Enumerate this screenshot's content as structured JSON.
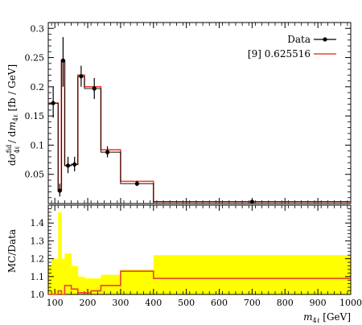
{
  "chart_data": {
    "type": "line",
    "x_range": [
      80,
      1000
    ],
    "main": {
      "ylabel": "dσ^fid_4ℓ / dm_4ℓ [fb / GeV]",
      "ylabel_parts": {
        "d1": "d",
        "sigma": "σ",
        "sup": "fid",
        "sub": "4ℓ",
        "slash": " / d",
        "m": "m",
        "sub2": "4ℓ",
        "unit": " [fb / GeV]"
      },
      "ylim": [
        0,
        0.31
      ],
      "yticks": [
        {
          "v": 0.05,
          "label": "0.05"
        },
        {
          "v": 0.1,
          "label": "0.1"
        },
        {
          "v": 0.15,
          "label": "0.15"
        },
        {
          "v": 0.2,
          "label": "0.2"
        },
        {
          "v": 0.25,
          "label": "0.25"
        },
        {
          "v": 0.3,
          "label": "0.3"
        }
      ],
      "bin_edges": [
        80,
        110,
        120,
        130,
        150,
        170,
        190,
        210,
        240,
        280,
        300,
        400,
        1000
      ],
      "data": {
        "name": "Data",
        "x": [
          95,
          115,
          125,
          140,
          160,
          180,
          220,
          260,
          350,
          700
        ],
        "y": [
          0.172,
          0.022,
          0.245,
          0.065,
          0.067,
          0.218,
          0.197,
          0.088,
          0.034,
          0.003
        ],
        "yerr_low": [
          0.025,
          0.01,
          0.045,
          0.013,
          0.012,
          0.018,
          0.018,
          0.009,
          0.004,
          0.001
        ],
        "yerr_high": [
          0.028,
          0.012,
          0.04,
          0.015,
          0.013,
          0.018,
          0.018,
          0.01,
          0.005,
          0.001
        ]
      },
      "mc": {
        "name": "[9] 0.625516",
        "color": "#e8442e",
        "bins": [
          {
            "lo": 80,
            "hi": 110,
            "v": 0.172
          },
          {
            "lo": 110,
            "hi": 120,
            "v": 0.022
          },
          {
            "lo": 120,
            "hi": 130,
            "v": 0.245
          },
          {
            "lo": 130,
            "hi": 150,
            "v": 0.065
          },
          {
            "lo": 150,
            "hi": 170,
            "v": 0.067
          },
          {
            "lo": 170,
            "hi": 190,
            "v": 0.22
          },
          {
            "lo": 190,
            "hi": 240,
            "v": 0.2
          },
          {
            "lo": 240,
            "hi": 300,
            "v": 0.092
          },
          {
            "lo": 300,
            "hi": 400,
            "v": 0.038
          },
          {
            "lo": 400,
            "hi": 1000,
            "v": 0.003
          }
        ]
      },
      "data_step_bins": [
        {
          "lo": 80,
          "hi": 110,
          "v": 0.172
        },
        {
          "lo": 110,
          "hi": 120,
          "v": 0.022
        },
        {
          "lo": 120,
          "hi": 130,
          "v": 0.245
        },
        {
          "lo": 130,
          "hi": 150,
          "v": 0.065
        },
        {
          "lo": 150,
          "hi": 170,
          "v": 0.067
        },
        {
          "lo": 170,
          "hi": 190,
          "v": 0.218
        },
        {
          "lo": 190,
          "hi": 240,
          "v": 0.197
        },
        {
          "lo": 240,
          "hi": 300,
          "v": 0.088
        },
        {
          "lo": 300,
          "hi": 400,
          "v": 0.034
        },
        {
          "lo": 400,
          "hi": 1000,
          "v": 0.003
        }
      ]
    },
    "ratio": {
      "ylabel": "MC/Data",
      "ylim": [
        1.0,
        1.5
      ],
      "yticks": [
        {
          "v": 1.0,
          "label": "1.0"
        },
        {
          "v": 1.1,
          "label": "1.1"
        },
        {
          "v": 1.2,
          "label": "1.2"
        },
        {
          "v": 1.3,
          "label": "1.3"
        },
        {
          "v": 1.4,
          "label": "1.4"
        }
      ],
      "band_color": "#ffff00",
      "band": [
        {
          "lo": 80,
          "hi": 90,
          "v": 1.16
        },
        {
          "lo": 90,
          "hi": 110,
          "v": 1.2
        },
        {
          "lo": 110,
          "hi": 120,
          "v": 1.46
        },
        {
          "lo": 120,
          "hi": 130,
          "v": 1.2
        },
        {
          "lo": 130,
          "hi": 150,
          "v": 1.23
        },
        {
          "lo": 150,
          "hi": 170,
          "v": 1.16
        },
        {
          "lo": 170,
          "hi": 190,
          "v": 1.1
        },
        {
          "lo": 190,
          "hi": 210,
          "v": 1.09
        },
        {
          "lo": 210,
          "hi": 240,
          "v": 1.09
        },
        {
          "lo": 240,
          "hi": 300,
          "v": 1.11
        },
        {
          "lo": 300,
          "hi": 400,
          "v": 1.14
        },
        {
          "lo": 400,
          "hi": 1000,
          "v": 1.22
        }
      ],
      "line": [
        {
          "lo": 80,
          "hi": 110,
          "v": 1.0
        },
        {
          "lo": 110,
          "hi": 120,
          "v": 1.02
        },
        {
          "lo": 120,
          "hi": 130,
          "v": 1.0
        },
        {
          "lo": 130,
          "hi": 150,
          "v": 1.05
        },
        {
          "lo": 150,
          "hi": 170,
          "v": 1.03
        },
        {
          "lo": 170,
          "hi": 190,
          "v": 1.01
        },
        {
          "lo": 190,
          "hi": 210,
          "v": 1.01
        },
        {
          "lo": 210,
          "hi": 240,
          "v": 1.02
        },
        {
          "lo": 240,
          "hi": 300,
          "v": 1.05
        },
        {
          "lo": 300,
          "hi": 400,
          "v": 1.13
        },
        {
          "lo": 400,
          "hi": 1000,
          "v": 1.09
        }
      ]
    },
    "xaxis": {
      "label_parts": {
        "m": "m",
        "sub": "4ℓ",
        "unit": " [GeV]"
      },
      "ticks": [
        {
          "v": 100,
          "label": "100"
        },
        {
          "v": 200,
          "label": "200"
        },
        {
          "v": 300,
          "label": "300"
        },
        {
          "v": 400,
          "label": "400"
        },
        {
          "v": 500,
          "label": "500"
        },
        {
          "v": 600,
          "label": "600"
        },
        {
          "v": 700,
          "label": "700"
        },
        {
          "v": 800,
          "label": "800"
        },
        {
          "v": 900,
          "label": "900"
        },
        {
          "v": 1000,
          "label": "1000"
        }
      ]
    },
    "legend": {
      "placement": "top-right",
      "entries": [
        "Data",
        "[9] 0.625516"
      ]
    }
  }
}
